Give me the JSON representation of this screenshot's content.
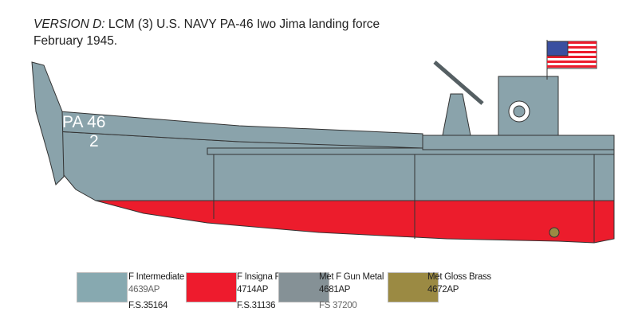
{
  "title": {
    "version": "VERSION D:",
    "line1": "LCM (3) U.S. NAVY PA-46 Iwo Jima landing force",
    "line2": "February 1945."
  },
  "hull_markings": {
    "hull_code": "PA 46",
    "boat_number": "2"
  },
  "colors": {
    "hull": "#8aa3ab",
    "red": "#ec1c2c",
    "dark": "#555f63"
  },
  "legend": [
    {
      "name": "F Intermediate Blue",
      "code": "4639AP",
      "fs": "F.S.35164",
      "color": "#87a9b0"
    },
    {
      "name": "F Insigna Red",
      "code": "4714AP",
      "fs": "F.S.31136",
      "color": "#ee1b2d"
    },
    {
      "name": "Met F Gun Metal",
      "code": "4681AP",
      "fs": "FS 37200",
      "color": "#859196"
    },
    {
      "name": "Met Gloss Brass",
      "code": "4672AP",
      "fs": "",
      "color": "#9b8a43"
    }
  ]
}
